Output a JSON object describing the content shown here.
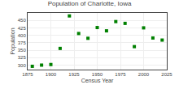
{
  "chart_data": {
    "type": "scatter",
    "title": "Population of Charlotte, Iowa",
    "xlabel": "Census Year",
    "ylabel": "Population",
    "x": [
      1880,
      1890,
      1900,
      1910,
      1920,
      1930,
      1940,
      1950,
      1960,
      1970,
      1980,
      1990,
      2000,
      2010,
      2020
    ],
    "values": [
      296,
      300,
      302,
      356,
      465,
      406,
      390,
      426,
      415,
      446,
      440,
      362,
      425,
      391,
      384
    ],
    "color": "#008000",
    "marker": "square",
    "xlim": [
      1875,
      2025
    ],
    "xticks": [
      1875,
      1900,
      1925,
      1950,
      1975,
      2000,
      2025
    ],
    "ylim": [
      285,
      475
    ],
    "yticks": [
      300,
      325,
      350,
      375,
      400,
      425,
      450
    ],
    "grid": true
  }
}
